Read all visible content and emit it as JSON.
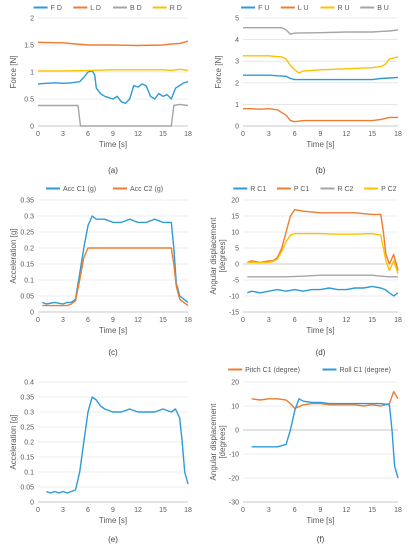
{
  "chart_data": [
    {
      "id": "a",
      "caption": "(a)",
      "type": "line",
      "xlabel": "Time [s]",
      "ylabel": "Force [N]",
      "xlim": [
        0,
        18
      ],
      "ylim": [
        0,
        2
      ],
      "xticks": [
        0,
        3,
        6,
        9,
        12,
        15,
        18
      ],
      "yticks": [
        0,
        0.5,
        1,
        1.5,
        2
      ],
      "series": [
        {
          "name": "F D",
          "color": "#2E9BD6",
          "x": [
            0,
            1,
            2,
            3,
            4,
            5,
            5.5,
            6,
            6.5,
            6.8,
            7,
            7.5,
            8,
            9,
            9.5,
            10,
            10.5,
            11,
            11.5,
            12,
            12.5,
            13,
            13.5,
            14,
            14.5,
            15,
            15.5,
            16,
            16.5,
            17,
            17.5,
            18
          ],
          "y": [
            0.78,
            0.79,
            0.8,
            0.79,
            0.8,
            0.82,
            0.9,
            1.0,
            1.02,
            0.95,
            0.7,
            0.6,
            0.55,
            0.5,
            0.55,
            0.45,
            0.42,
            0.5,
            0.75,
            0.72,
            0.78,
            0.74,
            0.55,
            0.5,
            0.6,
            0.55,
            0.58,
            0.5,
            0.7,
            0.75,
            0.8,
            0.82
          ]
        },
        {
          "name": "L D",
          "color": "#ED7D31",
          "x": [
            0,
            3,
            6,
            9,
            12,
            15,
            16,
            17,
            18
          ],
          "y": [
            1.55,
            1.54,
            1.5,
            1.5,
            1.49,
            1.5,
            1.52,
            1.53,
            1.57
          ]
        },
        {
          "name": "B D",
          "color": "#A5A5A5",
          "x": [
            0,
            1,
            2,
            3,
            4,
            4.8,
            5.1,
            6,
            9,
            12,
            15,
            16,
            16.3,
            17,
            18
          ],
          "y": [
            0.38,
            0.38,
            0.38,
            0.38,
            0.38,
            0.38,
            0.0,
            0.0,
            0.0,
            0.0,
            0.0,
            0.0,
            0.38,
            0.4,
            0.38
          ]
        },
        {
          "name": "R D",
          "color": "#FFC000",
          "x": [
            0,
            3,
            6,
            9,
            12,
            15,
            16,
            17,
            18
          ],
          "y": [
            1.02,
            1.02,
            1.03,
            1.04,
            1.04,
            1.04,
            1.03,
            1.05,
            1.03
          ]
        }
      ]
    },
    {
      "id": "b",
      "caption": "(b)",
      "type": "line",
      "xlabel": "Time [s]",
      "ylabel": "Force [N]",
      "xlim": [
        0,
        18
      ],
      "ylim": [
        0,
        5
      ],
      "xticks": [
        0,
        3,
        6,
        9,
        12,
        15,
        18
      ],
      "yticks": [
        0,
        1,
        2,
        3,
        4,
        5
      ],
      "series": [
        {
          "name": "F U",
          "color": "#2E9BD6",
          "x": [
            0,
            3,
            5,
            5.5,
            6,
            9,
            12,
            15,
            16,
            17,
            18
          ],
          "y": [
            2.35,
            2.35,
            2.3,
            2.2,
            2.15,
            2.15,
            2.15,
            2.15,
            2.2,
            2.22,
            2.25
          ]
        },
        {
          "name": "L U",
          "color": "#ED7D31",
          "x": [
            0,
            1,
            2,
            3,
            4,
            5,
            5.5,
            6,
            7,
            9,
            12,
            15,
            16,
            16.5,
            17,
            18
          ],
          "y": [
            0.8,
            0.8,
            0.78,
            0.8,
            0.75,
            0.5,
            0.25,
            0.2,
            0.25,
            0.25,
            0.25,
            0.25,
            0.3,
            0.35,
            0.4,
            0.4
          ]
        },
        {
          "name": "R U",
          "color": "#FFC000",
          "x": [
            0,
            3,
            4.5,
            5,
            5.5,
            6,
            6.5,
            7,
            9,
            12,
            15,
            16,
            16.5,
            17,
            18
          ],
          "y": [
            3.25,
            3.25,
            3.2,
            3.1,
            2.8,
            2.6,
            2.45,
            2.55,
            2.6,
            2.65,
            2.7,
            2.75,
            2.85,
            3.1,
            3.2
          ]
        },
        {
          "name": "B U",
          "color": "#A5A5A5",
          "x": [
            0,
            3,
            4.5,
            5,
            5.5,
            6,
            9,
            12,
            15,
            16,
            17,
            18
          ],
          "y": [
            4.55,
            4.55,
            4.55,
            4.45,
            4.25,
            4.3,
            4.32,
            4.35,
            4.35,
            4.38,
            4.4,
            4.45
          ]
        }
      ]
    },
    {
      "id": "c",
      "caption": "(c)",
      "type": "line",
      "xlabel": "Time [s]",
      "ylabel": "Acceleration [g]",
      "xlim": [
        0,
        18
      ],
      "ylim": [
        0,
        0.35
      ],
      "xticks": [
        0,
        3,
        6,
        9,
        12,
        15,
        18
      ],
      "yticks": [
        0,
        0.05,
        0.1,
        0.15,
        0.2,
        0.25,
        0.3,
        0.35
      ],
      "series": [
        {
          "name": "Acc C1 (g)",
          "color": "#2E9BD6",
          "x": [
            0.5,
            1,
            2,
            3,
            3.5,
            4,
            4.5,
            5,
            5.5,
            6,
            6.5,
            7,
            8,
            9,
            10,
            11,
            12,
            13,
            14,
            15,
            15.5,
            16,
            16.3,
            16.6,
            17,
            17.5,
            18
          ],
          "y": [
            0.03,
            0.025,
            0.03,
            0.025,
            0.03,
            0.03,
            0.04,
            0.12,
            0.2,
            0.27,
            0.3,
            0.29,
            0.29,
            0.28,
            0.28,
            0.29,
            0.28,
            0.28,
            0.29,
            0.28,
            0.28,
            0.28,
            0.2,
            0.09,
            0.05,
            0.04,
            0.03
          ]
        },
        {
          "name": "Acc C2 (g)",
          "color": "#ED7D31",
          "x": [
            0.5,
            1,
            2,
            3,
            3.5,
            4,
            4.5,
            5,
            5.5,
            6,
            7,
            9,
            11,
            13,
            15,
            15.5,
            16,
            16.3,
            16.6,
            17,
            17.5,
            18
          ],
          "y": [
            0.02,
            0.02,
            0.02,
            0.02,
            0.02,
            0.025,
            0.035,
            0.1,
            0.17,
            0.2,
            0.2,
            0.2,
            0.2,
            0.2,
            0.2,
            0.2,
            0.2,
            0.15,
            0.08,
            0.04,
            0.03,
            0.02
          ]
        }
      ]
    },
    {
      "id": "d",
      "caption": "(d)",
      "type": "line",
      "xlabel": "Time [s]",
      "ylabel": "Angular displacement [degrees]",
      "xlim": [
        0,
        18
      ],
      "ylim": [
        -15,
        20
      ],
      "xticks": [
        0,
        3,
        6,
        9,
        12,
        15,
        18
      ],
      "yticks": [
        -15,
        -10,
        -5,
        0,
        5,
        10,
        15,
        20
      ],
      "series": [
        {
          "name": "R C1",
          "color": "#2E9BD6",
          "x": [
            0.5,
            1,
            2,
            3,
            4,
            5,
            6,
            7,
            8,
            9,
            10,
            11,
            12,
            13,
            14,
            15,
            16,
            16.5,
            17,
            17.5,
            18
          ],
          "y": [
            -9,
            -8.5,
            -9,
            -8.5,
            -8,
            -8.5,
            -8,
            -8.5,
            -8,
            -8,
            -7.5,
            -8,
            -8,
            -7.5,
            -7.5,
            -7,
            -7.5,
            -8,
            -9,
            -10,
            -9
          ]
        },
        {
          "name": "P C1",
          "color": "#ED7D31",
          "x": [
            0.5,
            1,
            2,
            3,
            3.5,
            4,
            4.5,
            5,
            5.5,
            6,
            7,
            9,
            11,
            13,
            15,
            16,
            16.3,
            16.6,
            17,
            17.5,
            18
          ],
          "y": [
            0.5,
            1,
            0.5,
            1,
            1,
            2,
            5,
            10,
            15,
            17,
            16.5,
            16,
            16,
            16,
            15.5,
            15.5,
            10,
            3,
            0,
            3,
            -2
          ]
        },
        {
          "name": "R C2",
          "color": "#A5A5A5",
          "x": [
            0.5,
            1,
            3,
            5,
            7,
            9,
            11,
            13,
            15,
            16,
            17,
            18
          ],
          "y": [
            -4,
            -4,
            -4,
            -4,
            -3.8,
            -3.5,
            -3.5,
            -3.5,
            -3.5,
            -3.8,
            -4,
            -4
          ]
        },
        {
          "name": "P C2",
          "color": "#FFC000",
          "x": [
            0.5,
            1,
            2,
            3,
            3.5,
            4,
            4.5,
            5,
            5.5,
            6,
            7,
            9,
            11,
            13,
            15,
            16,
            16.3,
            16.6,
            17,
            17.5,
            18
          ],
          "y": [
            0.5,
            0.5,
            0.5,
            0.5,
            0.8,
            1.5,
            4,
            7,
            9,
            9.5,
            9.5,
            9.5,
            9.3,
            9.3,
            9.5,
            9,
            5,
            1,
            -2,
            1,
            -3
          ]
        }
      ]
    },
    {
      "id": "e",
      "caption": "(e)",
      "type": "line",
      "xlabel": "Time [s]",
      "ylabel": "Acceleration [g]",
      "xlim": [
        0,
        18
      ],
      "ylim": [
        0,
        0.4
      ],
      "xticks": [
        0,
        3,
        6,
        9,
        12,
        15,
        18
      ],
      "yticks": [
        0,
        0.05,
        0.1,
        0.15,
        0.2,
        0.25,
        0.3,
        0.35,
        0.4
      ],
      "series": [
        {
          "name": "",
          "color": "#2E9BD6",
          "x": [
            1,
            1.5,
            2,
            2.5,
            3,
            3.5,
            4,
            4.5,
            5,
            5.5,
            6,
            6.5,
            7,
            7.5,
            8,
            9,
            10,
            11,
            12,
            13,
            14,
            15,
            16,
            16.5,
            17,
            17.3,
            17.6,
            18
          ],
          "y": [
            0.035,
            0.03,
            0.035,
            0.03,
            0.035,
            0.03,
            0.035,
            0.04,
            0.1,
            0.2,
            0.3,
            0.35,
            0.34,
            0.32,
            0.31,
            0.3,
            0.3,
            0.31,
            0.3,
            0.3,
            0.3,
            0.31,
            0.3,
            0.31,
            0.28,
            0.2,
            0.1,
            0.06
          ]
        }
      ]
    },
    {
      "id": "f",
      "caption": "(f)",
      "type": "line",
      "xlabel": "Time [s]",
      "ylabel": "Angular displacement [degrees]",
      "xlim": [
        0,
        18
      ],
      "ylim": [
        -30,
        20
      ],
      "xticks": [
        0,
        3,
        6,
        9,
        12,
        15,
        18
      ],
      "yticks": [
        -30,
        -20,
        -10,
        0,
        10,
        20
      ],
      "series": [
        {
          "name": "Pitch C1 (degree)",
          "color": "#ED7D31",
          "x": [
            1,
            2,
            3,
            4,
            5,
            5.5,
            6,
            7,
            8,
            9,
            10,
            11,
            12,
            13,
            14,
            15,
            16,
            17,
            17.5,
            18
          ],
          "y": [
            13,
            12.5,
            13,
            13,
            12.5,
            11,
            9,
            10.5,
            11,
            11,
            10.5,
            10.5,
            10.5,
            10.5,
            10,
            10.5,
            10,
            11,
            16,
            13
          ]
        },
        {
          "name": "Roll C1 (degree)",
          "color": "#2E9BD6",
          "x": [
            1,
            2,
            3,
            4,
            4.5,
            5,
            5.5,
            6,
            6.5,
            7,
            8,
            9,
            10,
            11,
            12,
            13,
            14,
            15,
            16,
            17,
            17.3,
            17.6,
            18
          ],
          "y": [
            -7,
            -7,
            -7,
            -7,
            -6.5,
            -6,
            0,
            8,
            13,
            12,
            11.5,
            11.5,
            11,
            11,
            11,
            11,
            11,
            11,
            11,
            10.5,
            0,
            -15,
            -20
          ]
        }
      ]
    }
  ]
}
